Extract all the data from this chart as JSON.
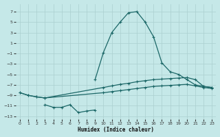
{
  "xlabel": "Humidex (Indice chaleur)",
  "bg_color": "#c5e8e8",
  "grid_color": "#aacfcf",
  "line_color": "#1a6666",
  "xlim": [
    -0.5,
    23.5
  ],
  "ylim": [
    -13.5,
    8.5
  ],
  "yticks": [
    7,
    5,
    3,
    1,
    -1,
    -3,
    -5,
    -7,
    -9,
    -11,
    -13
  ],
  "xticks": [
    0,
    1,
    2,
    3,
    4,
    5,
    6,
    7,
    8,
    9,
    10,
    11,
    12,
    13,
    14,
    15,
    16,
    17,
    18,
    19,
    20,
    21,
    22,
    23
  ],
  "series": [
    {
      "x": [
        9,
        10,
        11,
        12,
        13,
        14,
        15,
        16,
        17,
        18,
        19,
        20,
        21,
        22,
        23
      ],
      "y": [
        -6.0,
        -0.8,
        3.0,
        5.0,
        6.8,
        7.0,
        5.0,
        2.2,
        -2.8,
        -4.5,
        -5.0,
        -6.0,
        -7.0,
        -7.3,
        -7.5
      ]
    },
    {
      "x": [
        0,
        1,
        2,
        3,
        10,
        11,
        12,
        13,
        14,
        15,
        16,
        17,
        18,
        19,
        20,
        21,
        22,
        23
      ],
      "y": [
        -8.5,
        -9.0,
        -9.3,
        -9.5,
        -7.5,
        -7.2,
        -6.9,
        -6.7,
        -6.4,
        -6.2,
        -6.0,
        -5.9,
        -5.8,
        -5.7,
        -5.6,
        -6.0,
        -7.3,
        -7.5
      ]
    },
    {
      "x": [
        0,
        1,
        2,
        3,
        10,
        11,
        12,
        13,
        14,
        15,
        16,
        17,
        18,
        19,
        20,
        21,
        22,
        23
      ],
      "y": [
        -8.5,
        -9.0,
        -9.3,
        -9.5,
        -8.5,
        -8.3,
        -8.1,
        -7.9,
        -7.7,
        -7.5,
        -7.3,
        -7.2,
        -7.1,
        -7.0,
        -6.9,
        -7.2,
        -7.5,
        -7.7
      ]
    },
    {
      "x": [
        3,
        4,
        5,
        6,
        7,
        8,
        9
      ],
      "y": [
        -10.8,
        -11.3,
        -11.3,
        -10.8,
        -12.3,
        -12.0,
        -11.8
      ]
    }
  ]
}
